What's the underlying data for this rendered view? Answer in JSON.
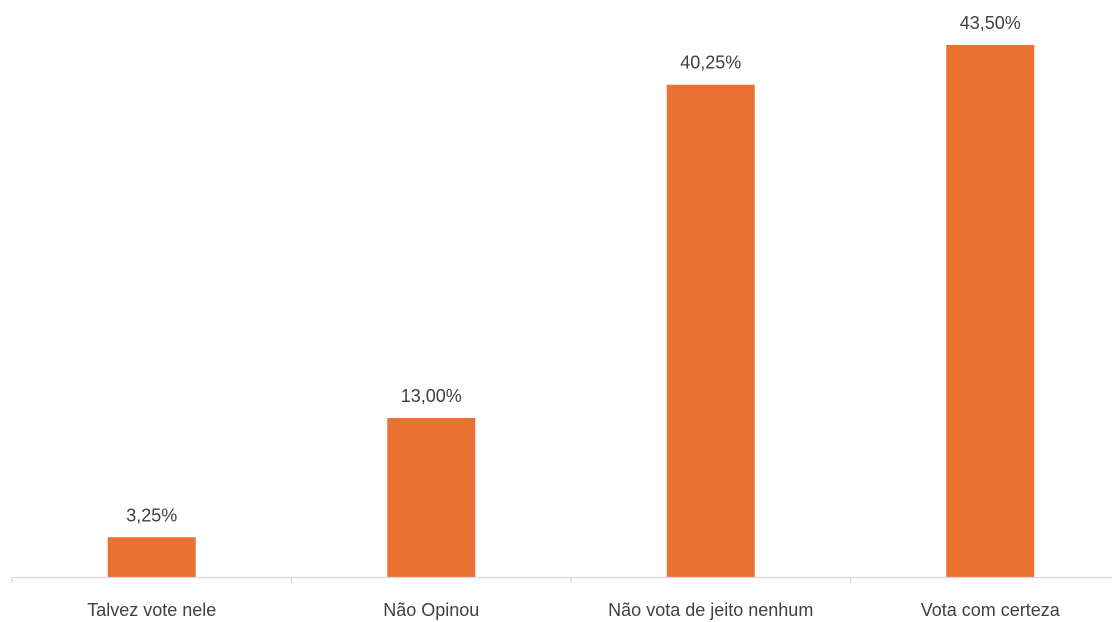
{
  "chart_data": {
    "type": "bar",
    "categories": [
      "Talvez vote nele",
      "Não Opinou",
      "Não vota de jeito nenhum",
      "Vota com certeza"
    ],
    "values": [
      3.25,
      13.0,
      40.25,
      43.5
    ],
    "data_labels": [
      "3,25%",
      "13,00%",
      "40,25%",
      "43,50%"
    ],
    "title": "",
    "xlabel": "",
    "ylabel": "",
    "ylim": [
      0,
      43.5
    ],
    "grid": false,
    "legend": "none",
    "bar_color": "#E97132",
    "axis_color": "#D9D9D9",
    "text_color": "#404040"
  }
}
